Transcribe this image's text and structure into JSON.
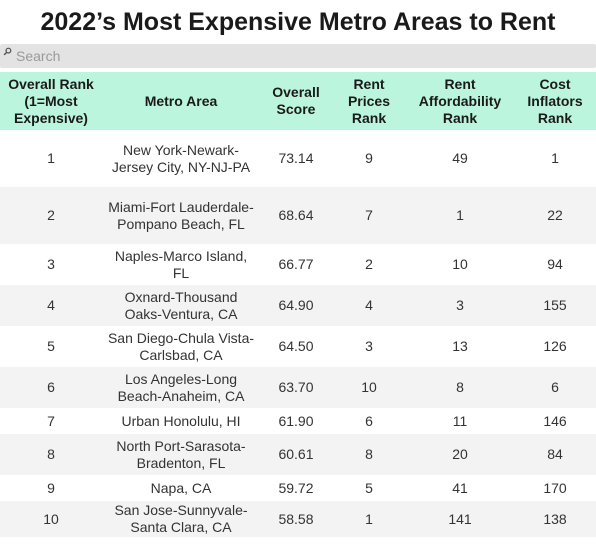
{
  "title": "2022’s Most Expensive Metro Areas to Rent",
  "search": {
    "icon": "search-icon",
    "placeholder": "Search"
  },
  "colors": {
    "header_bg": "#bcf5dd",
    "stripe_bg": "#f3f3f3",
    "search_bg": "#e3e3e3"
  },
  "table": {
    "headers": [
      "Overall Rank (1=Most Expensive)",
      "Metro Area",
      "Overall Score",
      "Rent Prices Rank",
      "Rent Affordability Rank",
      "Cost Inflators Rank"
    ],
    "rows": [
      [
        "1",
        "New York-Newark-Jersey City, NY-NJ-PA",
        "73.14",
        "9",
        "49",
        "1"
      ],
      [
        "2",
        "Miami-Fort Lauderdale-Pompano Beach, FL",
        "68.64",
        "7",
        "1",
        "22"
      ],
      [
        "3",
        "Naples-Marco Island, FL",
        "66.77",
        "2",
        "10",
        "94"
      ],
      [
        "4",
        "Oxnard-Thousand Oaks-Ventura, CA",
        "64.90",
        "4",
        "3",
        "155"
      ],
      [
        "5",
        "San Diego-Chula Vista-Carlsbad, CA",
        "64.50",
        "3",
        "13",
        "126"
      ],
      [
        "6",
        "Los Angeles-Long Beach-Anaheim, CA",
        "63.70",
        "10",
        "8",
        "6"
      ],
      [
        "7",
        "Urban Honolulu, HI",
        "61.90",
        "6",
        "11",
        "146"
      ],
      [
        "8",
        "North Port-Sarasota-Bradenton, FL",
        "60.61",
        "8",
        "20",
        "84"
      ],
      [
        "9",
        "Napa, CA",
        "59.72",
        "5",
        "41",
        "170"
      ],
      [
        "10",
        "San Jose-Sunnyvale-Santa Clara, CA",
        "58.58",
        "1",
        "141",
        "138"
      ]
    ]
  }
}
